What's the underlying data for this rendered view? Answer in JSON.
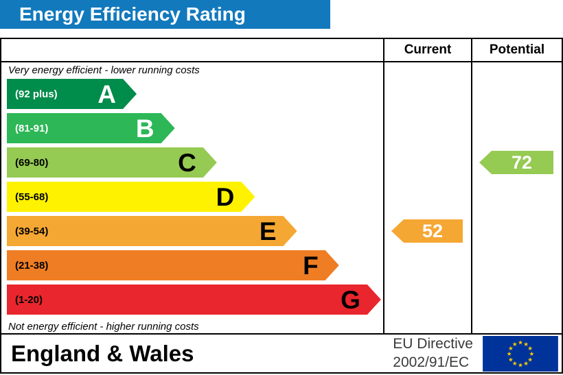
{
  "header": {
    "title": "Energy Efficiency Rating",
    "bg_color": "#1279bd",
    "text_color": "#ffffff"
  },
  "columns": {
    "current_label": "Current",
    "potential_label": "Potential"
  },
  "notes": {
    "top": "Very energy efficient - lower running costs",
    "bottom": "Not energy efficient - higher running costs"
  },
  "chart_data": {
    "type": "bar",
    "title": "Energy Efficiency Rating",
    "bands": [
      {
        "letter": "A",
        "range_label": "(92 plus)",
        "color": "#008c4a",
        "text_color": "#ffffff",
        "width_pct": 34
      },
      {
        "letter": "B",
        "range_label": "(81-91)",
        "color": "#2db757",
        "text_color": "#ffffff",
        "width_pct": 44
      },
      {
        "letter": "C",
        "range_label": "(69-80)",
        "color": "#95ca53",
        "text_color": "#000000",
        "width_pct": 55
      },
      {
        "letter": "D",
        "range_label": "(55-68)",
        "color": "#fff200",
        "text_color": "#000000",
        "width_pct": 65
      },
      {
        "letter": "E",
        "range_label": "(39-54)",
        "color": "#f5a733",
        "text_color": "#000000",
        "width_pct": 76
      },
      {
        "letter": "F",
        "range_label": "(21-38)",
        "color": "#ef7d23",
        "text_color": "#000000",
        "width_pct": 87
      },
      {
        "letter": "G",
        "range_label": "(1-20)",
        "color": "#e9262d",
        "text_color": "#000000",
        "width_pct": 98
      }
    ],
    "current": {
      "value": 52,
      "band_letter": "E",
      "band_index": 4,
      "color": "#f5a733"
    },
    "potential": {
      "value": 72,
      "band_letter": "C",
      "band_index": 2,
      "color": "#95ca53"
    }
  },
  "footer": {
    "region": "England & Wales",
    "directive_line1": "EU Directive",
    "directive_line2": "2002/91/EC",
    "flag": {
      "bg": "#003399",
      "star_color": "#ffcc00"
    }
  }
}
